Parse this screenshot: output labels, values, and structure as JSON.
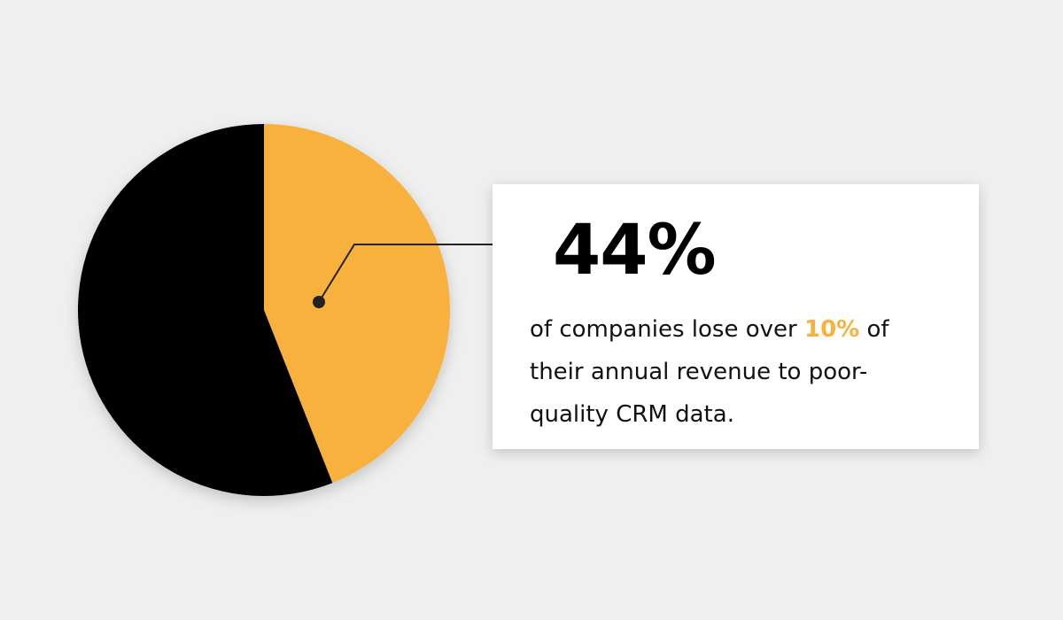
{
  "chart_data": {
    "type": "pie",
    "values": [
      44,
      56
    ],
    "value_labels": [
      "44%",
      null
    ],
    "colors": [
      "#f9b13e",
      "#000000"
    ],
    "start_angle": 0,
    "annotation": {
      "before": "of companies lose over",
      "highlight": "10%",
      "after": "of their annual revenue to poor-quality CRM data."
    }
  }
}
